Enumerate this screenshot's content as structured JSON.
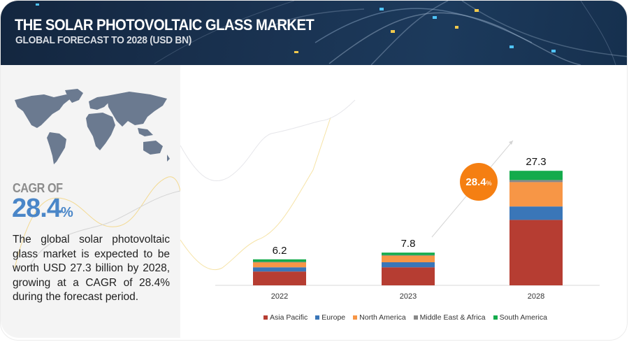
{
  "header": {
    "title": "THE SOLAR PHOTOVOLTAIC GLASS MARKET",
    "subtitle": "GLOBAL FORECAST TO 2028 (USD BN)"
  },
  "left_panel": {
    "map_icon": "world-map-icon",
    "cagr_label": "CAGR OF",
    "cagr_value": "28.4",
    "cagr_unit": "%",
    "description": "The global solar photovoltaic glass market is expected to be worth USD 27.3 billion by 2028, growing at a CAGR of 28.4% during the forecast period."
  },
  "growth_bubble": {
    "value": "28.4",
    "unit": "%"
  },
  "colors": {
    "header_bg": "#1a3352",
    "accent_blue": "#4a86c8",
    "bubble_orange": "#f57f12"
  },
  "chart_data": {
    "type": "bar",
    "stacked": true,
    "title": "",
    "xlabel": "",
    "ylabel": "",
    "ylim": [
      0,
      30
    ],
    "grid": false,
    "legend_position": "bottom",
    "categories": [
      "2022",
      "2023",
      "2028"
    ],
    "totals": [
      "6.2",
      "7.8",
      "27.3"
    ],
    "series": [
      {
        "name": "Asia Pacific",
        "color": "#b63d32",
        "values": [
          3.3,
          4.3,
          15.6
        ]
      },
      {
        "name": "Europe",
        "color": "#3a76b8",
        "values": [
          1.0,
          1.2,
          3.2
        ]
      },
      {
        "name": "North America",
        "color": "#f79646",
        "values": [
          1.2,
          1.6,
          5.8
        ]
      },
      {
        "name": "Middle East & Africa",
        "color": "#888888",
        "values": [
          0.1,
          0.1,
          0.5
        ]
      },
      {
        "name": "South America",
        "color": "#14ab4c",
        "values": [
          0.6,
          0.6,
          2.2
        ]
      }
    ]
  }
}
